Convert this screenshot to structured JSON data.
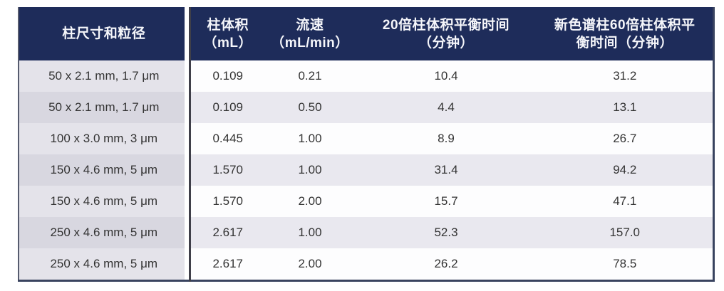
{
  "table": {
    "title_semantic": "column-equilibration-time-table",
    "colors": {
      "header_bg": "#1e2c5a",
      "header_text": "#f5f6fa",
      "body_text": "#333333",
      "first_col_odd": "#e4e3ea",
      "first_col_even": "#d8d7e0",
      "data_odd": "#fdfdfe",
      "data_even": "#e9e8ef",
      "separator": "#3f3f49",
      "outer_border": "#39435f"
    },
    "columns": [
      {
        "line1": "柱尺寸和粒径",
        "line2": ""
      },
      {
        "line1": "柱体积",
        "line2": "（mL）"
      },
      {
        "line1": "流速",
        "line2": "（mL/min）"
      },
      {
        "line1": "20倍柱体积平衡时间",
        "line2": "（分钟）"
      },
      {
        "line1": "新色谱柱60倍柱体积平",
        "line2": "衡时间（分钟）"
      }
    ],
    "rows": [
      [
        "50 x 2.1 mm, 1.7 μm",
        "0.109",
        "0.21",
        "10.4",
        "31.2"
      ],
      [
        "50 x 2.1 mm, 1.7 μm",
        "0.109",
        "0.50",
        "4.4",
        "13.1"
      ],
      [
        "100 x 3.0 mm, 3 μm",
        "0.445",
        "1.00",
        "8.9",
        "26.7"
      ],
      [
        "150 x 4.6 mm, 5 μm",
        "1.570",
        "1.00",
        "31.4",
        "94.2"
      ],
      [
        "150 x 4.6 mm, 5 μm",
        "1.570",
        "2.00",
        "15.7",
        "47.1"
      ],
      [
        "250 x 4.6 mm, 5 μm",
        "2.617",
        "1.00",
        "52.3",
        "157.0"
      ],
      [
        "250 x 4.6 mm, 5 μm",
        "2.617",
        "2.00",
        "26.2",
        "78.5"
      ]
    ]
  },
  "chart_data": {
    "type": "table",
    "columns": [
      "柱尺寸和粒径",
      "柱体积（mL）",
      "流速（mL/min）",
      "20倍柱体积平衡时间（分钟）",
      "新色谱柱60倍柱体积平衡时间（分钟）"
    ],
    "rows": [
      [
        "50 x 2.1 mm, 1.7 μm",
        0.109,
        0.21,
        10.4,
        31.2
      ],
      [
        "50 x 2.1 mm, 1.7 μm",
        0.109,
        0.5,
        4.4,
        13.1
      ],
      [
        "100 x 3.0 mm, 3 μm",
        0.445,
        1.0,
        8.9,
        26.7
      ],
      [
        "150 x 4.6 mm, 5 μm",
        1.57,
        1.0,
        31.4,
        94.2
      ],
      [
        "150 x 4.6 mm, 5 μm",
        1.57,
        2.0,
        15.7,
        47.1
      ],
      [
        "250 x 4.6 mm, 5 μm",
        2.617,
        1.0,
        52.3,
        157.0
      ],
      [
        "250 x 4.6 mm, 5 μm",
        2.617,
        2.0,
        26.2,
        78.5
      ]
    ]
  }
}
